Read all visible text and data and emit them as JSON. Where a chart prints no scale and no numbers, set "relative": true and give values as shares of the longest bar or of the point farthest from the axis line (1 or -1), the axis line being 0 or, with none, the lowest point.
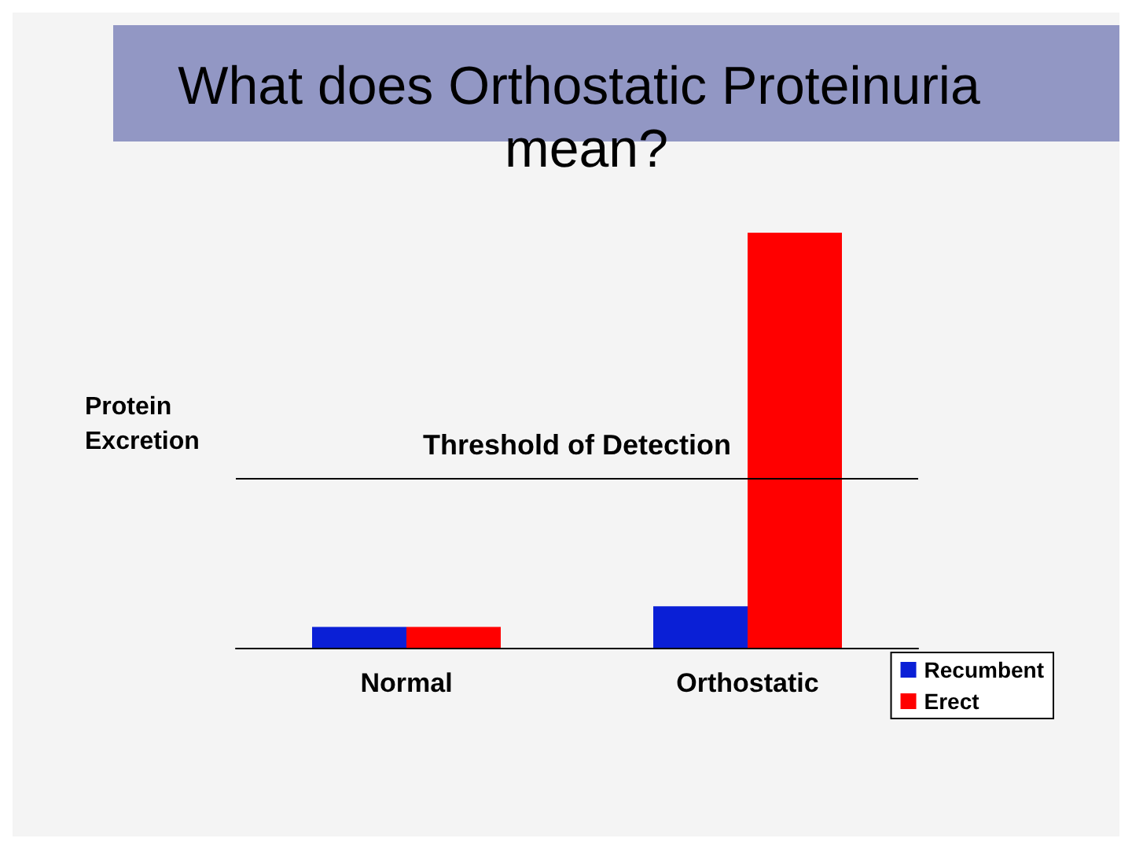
{
  "chart_data": {
    "type": "bar",
    "title": "What does Orthostatic Proteinuria mean?",
    "ylabel": "Protein Excretion",
    "categories": [
      "Normal",
      "Orthostatic"
    ],
    "relative": true,
    "series": [
      {
        "name": "Recumbent",
        "color": "#0a1fd6",
        "values": [
          0.05,
          0.1
        ]
      },
      {
        "name": "Erect",
        "color": "#ff0000",
        "values": [
          0.05,
          1
        ]
      }
    ],
    "ref_lines": [
      {
        "axis": "y",
        "value": 0.41,
        "label": "Threshold of Detection",
        "color": "#000000"
      }
    ],
    "legend": "bottom right"
  }
}
